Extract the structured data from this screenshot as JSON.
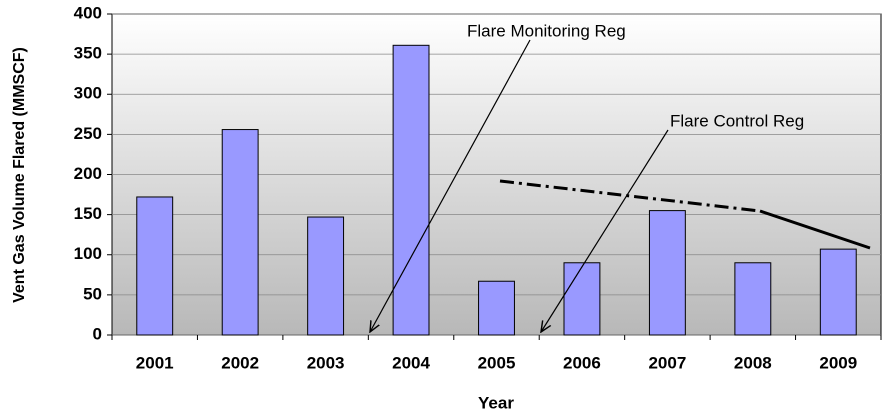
{
  "chart_data": {
    "type": "bar",
    "x_label": "Year",
    "y_label": "Vent Gas Volume Flared (MMSCF)",
    "annotations": [
      "Flare Monitoring Reg",
      "Flare Control Reg"
    ],
    "categories": [
      "2001",
      "2002",
      "2003",
      "2004",
      "2005",
      "2006",
      "2007",
      "2008",
      "2009"
    ],
    "values": [
      172,
      256,
      147,
      361,
      67,
      90,
      155,
      90,
      107
    ],
    "color": "#9999ff",
    "ylim": [
      0,
      400
    ],
    "yticks": [
      0,
      50,
      100,
      150,
      200,
      250,
      300,
      350,
      400
    ],
    "grid": true
  }
}
